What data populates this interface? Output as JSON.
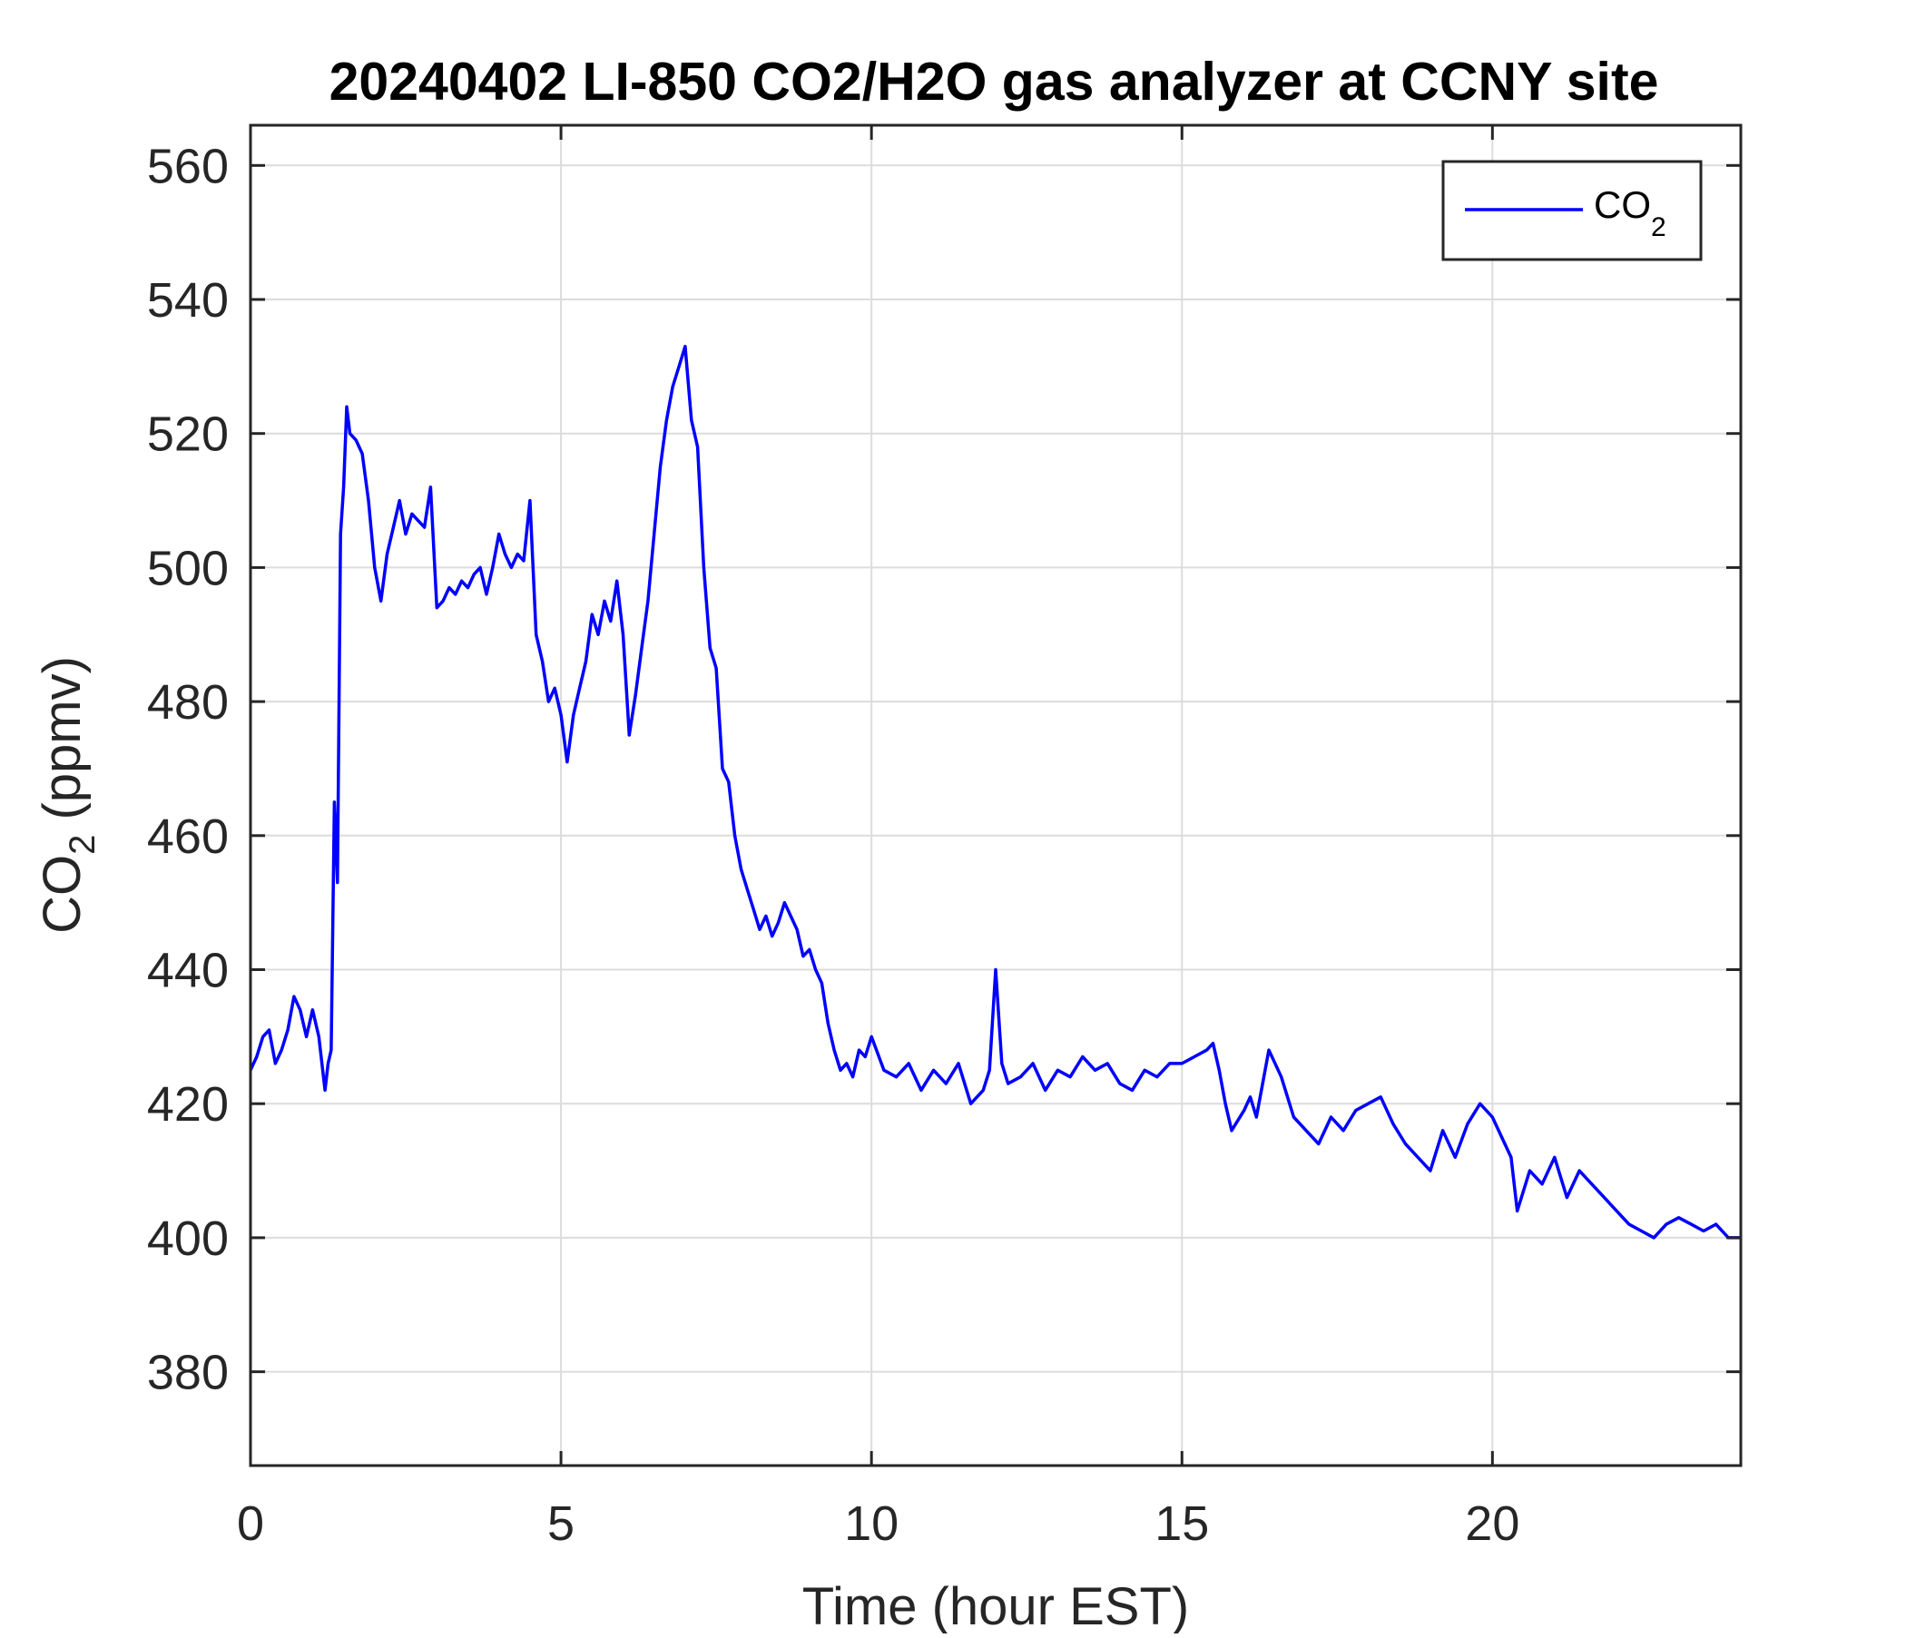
{
  "chart_data": {
    "type": "line",
    "title": "20240402 LI-850 CO2/H2O gas analyzer at CCNY site",
    "xlabel": "Time (hour EST)",
    "ylabel": {
      "pre": "CO",
      "sub": "2",
      "post": " (ppmv)"
    },
    "xlim": [
      0,
      24
    ],
    "ylim": [
      366,
      566
    ],
    "xticks": [
      0,
      5,
      10,
      15,
      20
    ],
    "yticks": [
      380,
      400,
      420,
      440,
      460,
      480,
      500,
      520,
      540,
      560
    ],
    "grid": true,
    "legend": {
      "position": "top-right",
      "label": {
        "pre": "CO",
        "sub": "2"
      }
    },
    "series": [
      {
        "name": "CO2",
        "color": "#0000ff",
        "x": [
          0,
          0.1,
          0.2,
          0.3,
          0.4,
          0.5,
          0.6,
          0.7,
          0.8,
          0.9,
          1.0,
          1.1,
          1.2,
          1.25,
          1.3,
          1.35,
          1.4,
          1.45,
          1.5,
          1.55,
          1.6,
          1.7,
          1.8,
          1.9,
          2.0,
          2.1,
          2.2,
          2.3,
          2.4,
          2.5,
          2.6,
          2.7,
          2.8,
          2.9,
          3.0,
          3.1,
          3.2,
          3.3,
          3.4,
          3.5,
          3.6,
          3.7,
          3.8,
          3.9,
          4.0,
          4.1,
          4.2,
          4.3,
          4.4,
          4.5,
          4.6,
          4.7,
          4.8,
          4.9,
          5.0,
          5.1,
          5.2,
          5.3,
          5.4,
          5.5,
          5.6,
          5.7,
          5.8,
          5.9,
          6.0,
          6.1,
          6.2,
          6.3,
          6.4,
          6.5,
          6.6,
          6.7,
          6.8,
          6.9,
          7.0,
          7.1,
          7.2,
          7.3,
          7.4,
          7.5,
          7.6,
          7.7,
          7.8,
          7.9,
          8.0,
          8.1,
          8.2,
          8.3,
          8.4,
          8.5,
          8.6,
          8.7,
          8.8,
          8.9,
          9.0,
          9.1,
          9.2,
          9.3,
          9.4,
          9.5,
          9.6,
          9.7,
          9.8,
          9.9,
          10.0,
          10.2,
          10.4,
          10.6,
          10.8,
          11.0,
          11.2,
          11.4,
          11.6,
          11.8,
          11.9,
          12.0,
          12.1,
          12.2,
          12.4,
          12.6,
          12.8,
          13.0,
          13.2,
          13.4,
          13.6,
          13.8,
          14.0,
          14.2,
          14.4,
          14.6,
          14.8,
          15.0,
          15.2,
          15.4,
          15.5,
          15.6,
          15.7,
          15.8,
          16.0,
          16.1,
          16.2,
          16.4,
          16.6,
          16.8,
          17.0,
          17.2,
          17.4,
          17.6,
          17.8,
          18.0,
          18.2,
          18.4,
          18.6,
          18.8,
          19.0,
          19.2,
          19.4,
          19.6,
          19.8,
          20.0,
          20.2,
          20.3,
          20.4,
          20.6,
          20.8,
          21.0,
          21.2,
          21.4,
          21.6,
          21.8,
          22.0,
          22.2,
          22.4,
          22.6,
          22.8,
          23.0,
          23.2,
          23.4,
          23.6,
          23.8,
          24.0
        ],
        "values": [
          425,
          427,
          430,
          431,
          426,
          428,
          431,
          436,
          434,
          430,
          434,
          430,
          422,
          426,
          428,
          465,
          453,
          505,
          512,
          524,
          520,
          519,
          517,
          510,
          500,
          495,
          502,
          506,
          510,
          505,
          508,
          507,
          506,
          512,
          494,
          495,
          497,
          496,
          498,
          497,
          499,
          500,
          496,
          500,
          505,
          502,
          500,
          502,
          501,
          510,
          490,
          486,
          480,
          482,
          478,
          471,
          478,
          482,
          486,
          493,
          490,
          495,
          492,
          498,
          490,
          475,
          481,
          488,
          495,
          505,
          515,
          522,
          527,
          530,
          533,
          522,
          518,
          500,
          488,
          485,
          470,
          468,
          460,
          455,
          452,
          449,
          446,
          448,
          445,
          447,
          450,
          448,
          446,
          442,
          443,
          440,
          438,
          432,
          428,
          425,
          426,
          424,
          428,
          427,
          430,
          425,
          424,
          426,
          422,
          425,
          423,
          426,
          420,
          422,
          425,
          440,
          426,
          423,
          424,
          426,
          422,
          425,
          424,
          427,
          425,
          426,
          423,
          422,
          425,
          424,
          426,
          426,
          427,
          428,
          429,
          425,
          420,
          416,
          419,
          421,
          418,
          428,
          424,
          418,
          416,
          414,
          418,
          416,
          419,
          420,
          421,
          417,
          414,
          412,
          410,
          416,
          412,
          417,
          420,
          418,
          414,
          412,
          404,
          410,
          408,
          412,
          406,
          410,
          408,
          406,
          404,
          402,
          401,
          400,
          402,
          403,
          402,
          401,
          402,
          400,
          400
        ]
      }
    ]
  }
}
